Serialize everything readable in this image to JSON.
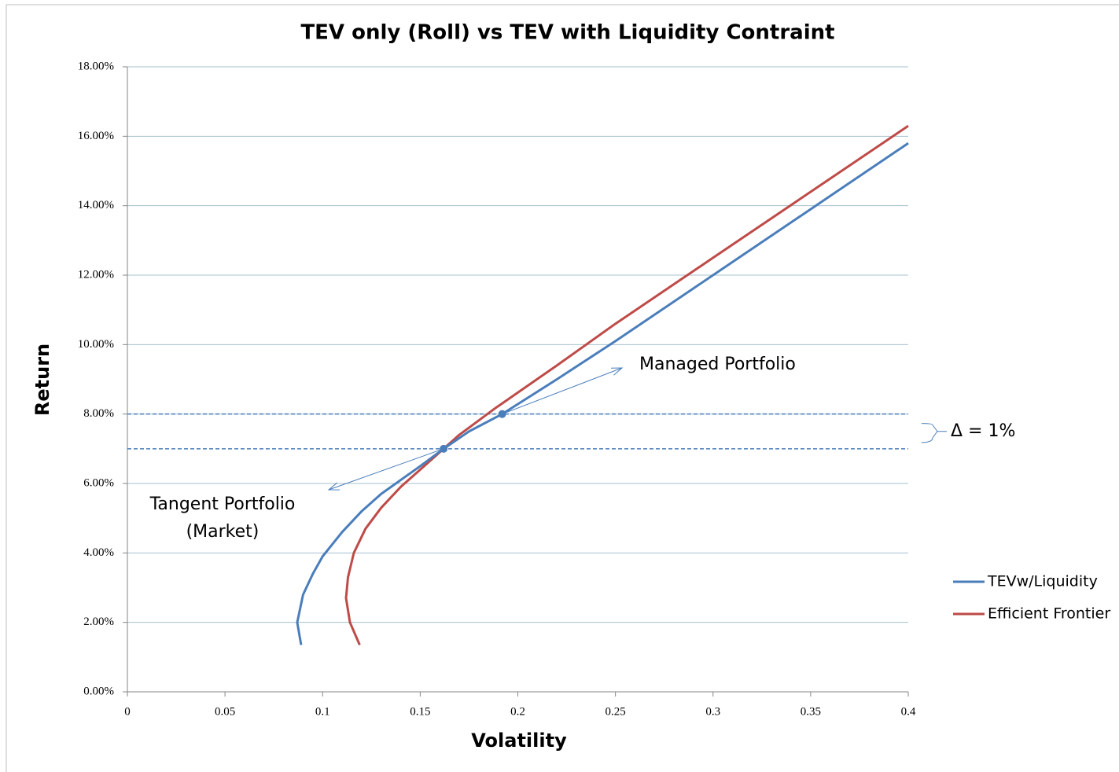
{
  "chart_data": {
    "type": "line",
    "title": "TEV only (Roll) vs TEV with Liquidity Contraint",
    "x_label": "Volatility",
    "y_label": "Return",
    "xlim": [
      0,
      0.4
    ],
    "ylim": [
      0,
      18
    ],
    "xticks": [
      0,
      0.05,
      0.1,
      0.15,
      0.2,
      0.25,
      0.3,
      0.35,
      0.4
    ],
    "yticks": [
      {
        "value": 0,
        "label": "0.00%"
      },
      {
        "value": 2,
        "label": "2.00%"
      },
      {
        "value": 4,
        "label": "4.00%"
      },
      {
        "value": 6,
        "label": "6.00%"
      },
      {
        "value": 8,
        "label": "8.00%"
      },
      {
        "value": 10,
        "label": "10.00%"
      },
      {
        "value": 12,
        "label": "12.00%"
      },
      {
        "value": 14,
        "label": "14.00%"
      },
      {
        "value": 16,
        "label": "16.00%"
      },
      {
        "value": 18,
        "label": "18.00%"
      }
    ],
    "grid": true,
    "series": [
      {
        "name": "TEVw/Liquidity",
        "color": "#4a7ebb",
        "x": [
          0.089,
          0.087,
          0.09,
          0.095,
          0.1,
          0.11,
          0.12,
          0.13,
          0.14,
          0.15,
          0.162,
          0.175,
          0.192,
          0.22,
          0.25,
          0.3,
          0.35,
          0.4
        ],
        "values": [
          1.35,
          2.0,
          2.8,
          3.4,
          3.9,
          4.6,
          5.2,
          5.7,
          6.1,
          6.5,
          7.0,
          7.5,
          8.0,
          9.0,
          10.1,
          12.0,
          13.9,
          15.8
        ]
      },
      {
        "name": "Efficient Frontier",
        "color": "#be4b48",
        "x": [
          0.119,
          0.114,
          0.112,
          0.113,
          0.116,
          0.122,
          0.13,
          0.14,
          0.15,
          0.16,
          0.17,
          0.188,
          0.22,
          0.25,
          0.3,
          0.35,
          0.4
        ],
        "values": [
          1.35,
          2.0,
          2.7,
          3.3,
          4.0,
          4.7,
          5.3,
          5.9,
          6.4,
          6.9,
          7.4,
          8.15,
          9.4,
          10.6,
          12.5,
          14.4,
          16.3
        ]
      }
    ],
    "points": {
      "color": "#4a7ebb",
      "x": [
        0.162,
        0.192
      ],
      "values": [
        7.0,
        8.0
      ]
    },
    "reference_lines": {
      "color": "#4a7ebb",
      "values": [
        8.0,
        7.0
      ]
    },
    "annotations": {
      "managed": "Managed Portfolio",
      "tangent": [
        "Tangent Portfolio",
        "(Market)"
      ],
      "delta": "Δ = 1%"
    }
  }
}
